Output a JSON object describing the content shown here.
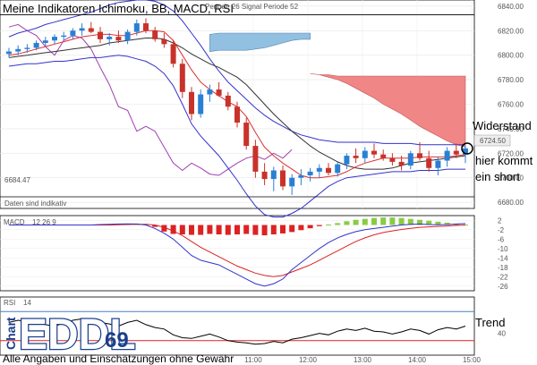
{
  "title": "Meine Indikatoren Ichimoku, BB, MACD, RSI",
  "disclaimer": "Alle Angaben und Einschätzungen ohne Gewähr",
  "top_strip_text": "Periode 26  Signal Periode 52",
  "logo": {
    "text_chart": "Chart",
    "text_main": "EDDL",
    "text_num": "69"
  },
  "colors": {
    "up_candle": "#2a7fd4",
    "down_candle": "#c8322a",
    "bb": "#3333cc",
    "ichimoku_cloud_blue": "#8cbde0",
    "ichimoku_cloud_red": "#f08080",
    "tenkan": "#e03030",
    "kijun": "#333333",
    "chikou": "#a040b0",
    "macd_pos": "#88cc44",
    "macd_neg": "#dd2222",
    "macd_line": "#3333cc",
    "signal_line": "#dd2222",
    "rsi_line": "#000000",
    "rsi_upper": "#4a7fc0",
    "rsi_lower": "#dd2222"
  },
  "chart_data": [
    {
      "type": "line",
      "name": "main",
      "ylim": [
        6675,
        6845
      ],
      "y_ticks": [
        6840.0,
        6820.0,
        6800.0,
        6780.0,
        6760.0,
        6740.0,
        6720.0,
        6700.0,
        6680.0
      ],
      "hlines": [
        6833,
        6684.47
      ],
      "low_label": "6684.47",
      "last_price_label": "6724.50",
      "last_price": 6724.5,
      "status_text": "Daten sind indikativ",
      "annotations": [
        "Widerstand",
        "hier kommt",
        "ein short"
      ],
      "candles": [
        {
          "t": 0,
          "o": 6801,
          "h": 6806,
          "l": 6798,
          "c": 6803
        },
        {
          "t": 1,
          "o": 6803,
          "h": 6808,
          "l": 6800,
          "c": 6805
        },
        {
          "t": 2,
          "o": 6805,
          "h": 6809,
          "l": 6802,
          "c": 6806
        },
        {
          "t": 3,
          "o": 6806,
          "h": 6812,
          "l": 6804,
          "c": 6810
        },
        {
          "t": 4,
          "o": 6810,
          "h": 6815,
          "l": 6807,
          "c": 6812
        },
        {
          "t": 5,
          "o": 6812,
          "h": 6817,
          "l": 6809,
          "c": 6815
        },
        {
          "t": 6,
          "o": 6815,
          "h": 6819,
          "l": 6812,
          "c": 6816
        },
        {
          "t": 7,
          "o": 6816,
          "h": 6822,
          "l": 6813,
          "c": 6820
        },
        {
          "t": 8,
          "o": 6820,
          "h": 6826,
          "l": 6816,
          "c": 6822
        },
        {
          "t": 9,
          "o": 6822,
          "h": 6827,
          "l": 6818,
          "c": 6819
        },
        {
          "t": 10,
          "o": 6819,
          "h": 6823,
          "l": 6810,
          "c": 6813
        },
        {
          "t": 11,
          "o": 6813,
          "h": 6818,
          "l": 6808,
          "c": 6815
        },
        {
          "t": 12,
          "o": 6815,
          "h": 6820,
          "l": 6810,
          "c": 6812
        },
        {
          "t": 13,
          "o": 6812,
          "h": 6821,
          "l": 6809,
          "c": 6819
        },
        {
          "t": 14,
          "o": 6819,
          "h": 6829,
          "l": 6816,
          "c": 6826
        },
        {
          "t": 15,
          "o": 6826,
          "h": 6830,
          "l": 6818,
          "c": 6820
        },
        {
          "t": 16,
          "o": 6820,
          "h": 6823,
          "l": 6811,
          "c": 6813
        },
        {
          "t": 17,
          "o": 6813,
          "h": 6818,
          "l": 6806,
          "c": 6809
        },
        {
          "t": 18,
          "o": 6809,
          "h": 6812,
          "l": 6790,
          "c": 6793
        },
        {
          "t": 19,
          "o": 6793,
          "h": 6797,
          "l": 6765,
          "c": 6770
        },
        {
          "t": 20,
          "o": 6770,
          "h": 6774,
          "l": 6747,
          "c": 6752
        },
        {
          "t": 21,
          "o": 6752,
          "h": 6772,
          "l": 6749,
          "c": 6768
        },
        {
          "t": 22,
          "o": 6768,
          "h": 6776,
          "l": 6762,
          "c": 6772
        },
        {
          "t": 23,
          "o": 6772,
          "h": 6778,
          "l": 6766,
          "c": 6767
        },
        {
          "t": 24,
          "o": 6767,
          "h": 6770,
          "l": 6755,
          "c": 6758
        },
        {
          "t": 25,
          "o": 6758,
          "h": 6762,
          "l": 6741,
          "c": 6745
        },
        {
          "t": 26,
          "o": 6745,
          "h": 6749,
          "l": 6723,
          "c": 6726
        },
        {
          "t": 27,
          "o": 6726,
          "h": 6731,
          "l": 6700,
          "c": 6705
        },
        {
          "t": 28,
          "o": 6705,
          "h": 6712,
          "l": 6694,
          "c": 6699
        },
        {
          "t": 29,
          "o": 6699,
          "h": 6709,
          "l": 6689,
          "c": 6706
        },
        {
          "t": 30,
          "o": 6706,
          "h": 6710,
          "l": 6690,
          "c": 6693
        },
        {
          "t": 31,
          "o": 6693,
          "h": 6703,
          "l": 6686,
          "c": 6700
        },
        {
          "t": 32,
          "o": 6700,
          "h": 6707,
          "l": 6694,
          "c": 6702
        },
        {
          "t": 33,
          "o": 6702,
          "h": 6708,
          "l": 6697,
          "c": 6705
        },
        {
          "t": 34,
          "o": 6705,
          "h": 6711,
          "l": 6700,
          "c": 6708
        },
        {
          "t": 35,
          "o": 6708,
          "h": 6712,
          "l": 6702,
          "c": 6704
        },
        {
          "t": 36,
          "o": 6704,
          "h": 6713,
          "l": 6701,
          "c": 6711
        },
        {
          "t": 37,
          "o": 6711,
          "h": 6720,
          "l": 6707,
          "c": 6718
        },
        {
          "t": 38,
          "o": 6718,
          "h": 6724,
          "l": 6712,
          "c": 6716
        },
        {
          "t": 39,
          "o": 6716,
          "h": 6725,
          "l": 6712,
          "c": 6722
        },
        {
          "t": 40,
          "o": 6722,
          "h": 6728,
          "l": 6716,
          "c": 6719
        },
        {
          "t": 41,
          "o": 6719,
          "h": 6723,
          "l": 6714,
          "c": 6716
        },
        {
          "t": 42,
          "o": 6716,
          "h": 6720,
          "l": 6710,
          "c": 6713
        },
        {
          "t": 43,
          "o": 6713,
          "h": 6718,
          "l": 6706,
          "c": 6710
        },
        {
          "t": 44,
          "o": 6710,
          "h": 6722,
          "l": 6707,
          "c": 6720
        },
        {
          "t": 45,
          "o": 6720,
          "h": 6729,
          "l": 6714,
          "c": 6716
        },
        {
          "t": 46,
          "o": 6716,
          "h": 6722,
          "l": 6705,
          "c": 6708
        },
        {
          "t": 47,
          "o": 6708,
          "h": 6717,
          "l": 6702,
          "c": 6714
        },
        {
          "t": 48,
          "o": 6714,
          "h": 6725,
          "l": 6709,
          "c": 6722
        },
        {
          "t": 49,
          "o": 6722,
          "h": 6728,
          "l": 6716,
          "c": 6719
        },
        {
          "t": 50,
          "o": 6719,
          "h": 6726,
          "l": 6712,
          "c": 6724
        }
      ],
      "bb_upper": [
        6815,
        6818,
        6820,
        6822,
        6825,
        6827,
        6829,
        6831,
        6833,
        6835,
        6838,
        6841,
        6843,
        6844,
        6845,
        6845,
        6844,
        6841,
        6836,
        6828,
        6818,
        6808,
        6797,
        6787,
        6778,
        6771,
        6764,
        6757,
        6751,
        6746,
        6742,
        6738,
        6735,
        6733,
        6731,
        6730,
        6729,
        6729,
        6729,
        6729,
        6729,
        6728,
        6728,
        6728,
        6728,
        6727,
        6727,
        6727,
        6727,
        6727,
        6727
      ],
      "bb_lower": [
        6791,
        6792,
        6793,
        6793,
        6794,
        6795,
        6795,
        6796,
        6797,
        6798,
        6798,
        6799,
        6800,
        6799,
        6797,
        6795,
        6791,
        6785,
        6775,
        6760,
        6744,
        6734,
        6726,
        6718,
        6708,
        6698,
        6687,
        6677,
        6670,
        6668,
        6668,
        6671,
        6675,
        6681,
        6687,
        6693,
        6697,
        6700,
        6701,
        6702,
        6703,
        6704,
        6705,
        6705,
        6705,
        6706,
        6706,
        6706,
        6707,
        6707,
        6707
      ],
      "tenkan": [
        6800,
        6801,
        6803,
        6805,
        6807,
        6809,
        6811,
        6813,
        6815,
        6816,
        6817,
        6817,
        6816,
        6816,
        6818,
        6820,
        6820,
        6819,
        6812,
        6800,
        6788,
        6778,
        6772,
        6767,
        6762,
        6758,
        6750,
        6737,
        6725,
        6718,
        6712,
        6707,
        6702,
        6700,
        6700,
        6701,
        6702,
        6705,
        6709,
        6712,
        6714,
        6716,
        6716,
        6716,
        6716,
        6717,
        6717,
        6717,
        6717,
        6718,
        6719
      ],
      "kijun": [
        6798,
        6799,
        6800,
        6801,
        6802,
        6803,
        6804,
        6805,
        6806,
        6807,
        6808,
        6810,
        6811,
        6812,
        6813,
        6814,
        6814,
        6813,
        6810,
        6806,
        6801,
        6797,
        6793,
        6790,
        6786,
        6782,
        6776,
        6768,
        6760,
        6752,
        6745,
        6738,
        6732,
        6726,
        6721,
        6717,
        6713,
        6710,
        6708,
        6707,
        6707,
        6707,
        6708,
        6710,
        6712,
        6713,
        6714,
        6715,
        6716,
        6717,
        6718
      ],
      "chikou": [
        6823,
        6825,
        6820,
        6816,
        6807,
        6800,
        6812,
        6816,
        6814,
        6805,
        6790,
        6776,
        6758,
        6755,
        6738,
        6742,
        6738,
        6725,
        6712,
        6706,
        6712,
        6708,
        6703,
        6702,
        6707,
        6712,
        6716,
        6718,
        6715,
        6720,
        6716,
        6723
      ],
      "cloud_blue": {
        "t_start": 22,
        "t_end": 33,
        "upper": [
          6817,
          6818,
          6818,
          6818,
          6818,
          6818,
          6818,
          6818,
          6818,
          6818,
          6818,
          6818
        ],
        "lower": [
          6803,
          6804,
          6804,
          6804,
          6804,
          6805,
          6806,
          6808,
          6810,
          6812,
          6813,
          6813
        ]
      },
      "cloud_red": {
        "t_start": 33,
        "t_end": 50,
        "upper": [
          6785,
          6784,
          6784,
          6783,
          6783,
          6783,
          6783,
          6783,
          6783,
          6783,
          6783,
          6783,
          6783,
          6783,
          6783,
          6783,
          6783,
          6783
        ],
        "lower": [
          6785,
          6784,
          6782,
          6780,
          6777,
          6773,
          6769,
          6765,
          6760,
          6756,
          6752,
          6747,
          6742,
          6738,
          6734,
          6730,
          6727,
          6725
        ]
      }
    },
    {
      "type": "bar",
      "name": "MACD",
      "label": "MACD",
      "params": "12 26 9",
      "ylim": [
        -28,
        4
      ],
      "y_ticks": [
        2,
        -2,
        -6,
        -10,
        -14,
        -18,
        -22,
        -26
      ],
      "histogram": [
        0,
        0,
        0,
        0,
        0,
        0,
        0,
        0,
        0,
        0,
        0,
        0,
        0.4,
        0.5,
        0.6,
        0.5,
        -0.8,
        -2.8,
        -3.8,
        -4.0,
        -4.2,
        -4.2,
        -3.8,
        -4.0,
        -4.2,
        -4.0,
        -3.8,
        -4.2,
        -4.4,
        -4.0,
        -3.6,
        -3.0,
        -2.2,
        -1.4,
        -0.5,
        0.2,
        0.8,
        1.6,
        2.2,
        2.6,
        3.0,
        3.2,
        3.2,
        3.0,
        2.6,
        2.2,
        1.8,
        1.4,
        1.0,
        0.6,
        0.2
      ],
      "macd_line": [
        0,
        0,
        0,
        0,
        0,
        0,
        0,
        0,
        0,
        0,
        0.2,
        0.3,
        0.4,
        0.5,
        0.4,
        0,
        -1.5,
        -3.5,
        -6.0,
        -9.5,
        -13,
        -15,
        -16,
        -17,
        -19,
        -21,
        -23,
        -25,
        -26,
        -25,
        -23,
        -19,
        -16,
        -13,
        -10,
        -7.5,
        -5.5,
        -4,
        -2.8,
        -2,
        -1.5,
        -1,
        -0.5,
        0,
        0.3,
        0.4,
        0.2,
        0.1,
        0.2,
        0.4,
        0.6
      ],
      "signal_line": [
        0,
        0,
        0,
        0,
        0,
        0,
        0,
        0,
        0,
        0,
        0,
        0,
        0.1,
        0.2,
        0.3,
        0.3,
        0,
        -1,
        -2.5,
        -4.5,
        -7,
        -9.5,
        -11.5,
        -13.5,
        -15.5,
        -17.5,
        -19,
        -20.5,
        -21.5,
        -22,
        -21.5,
        -20,
        -18.5,
        -17,
        -15,
        -13,
        -11,
        -9,
        -7,
        -5.5,
        -4.2,
        -3.2,
        -2.5,
        -1.9,
        -1.4,
        -1,
        -0.8,
        -0.6,
        -0.4,
        -0.2,
        0
      ]
    },
    {
      "type": "line",
      "name": "RSI",
      "label": "RSI",
      "params": "14",
      "ylim": [
        10,
        90
      ],
      "y_ticks": [
        40
      ],
      "hlines": [
        70,
        30
      ],
      "annotation": "Trend",
      "x_ticks": [
        "11:00",
        "12:00",
        "13:00",
        "14:00",
        "15:00"
      ],
      "values": [
        55,
        58,
        56,
        54,
        52,
        50,
        54,
        58,
        60,
        57,
        55,
        53,
        50,
        55,
        58,
        52,
        48,
        46,
        38,
        34,
        33,
        36,
        39,
        35,
        30,
        28,
        27,
        25,
        26,
        29,
        27,
        32,
        34,
        37,
        40,
        38,
        43,
        46,
        44,
        47,
        43,
        42,
        39,
        42,
        46,
        44,
        39,
        45,
        48,
        46,
        50
      ]
    }
  ]
}
